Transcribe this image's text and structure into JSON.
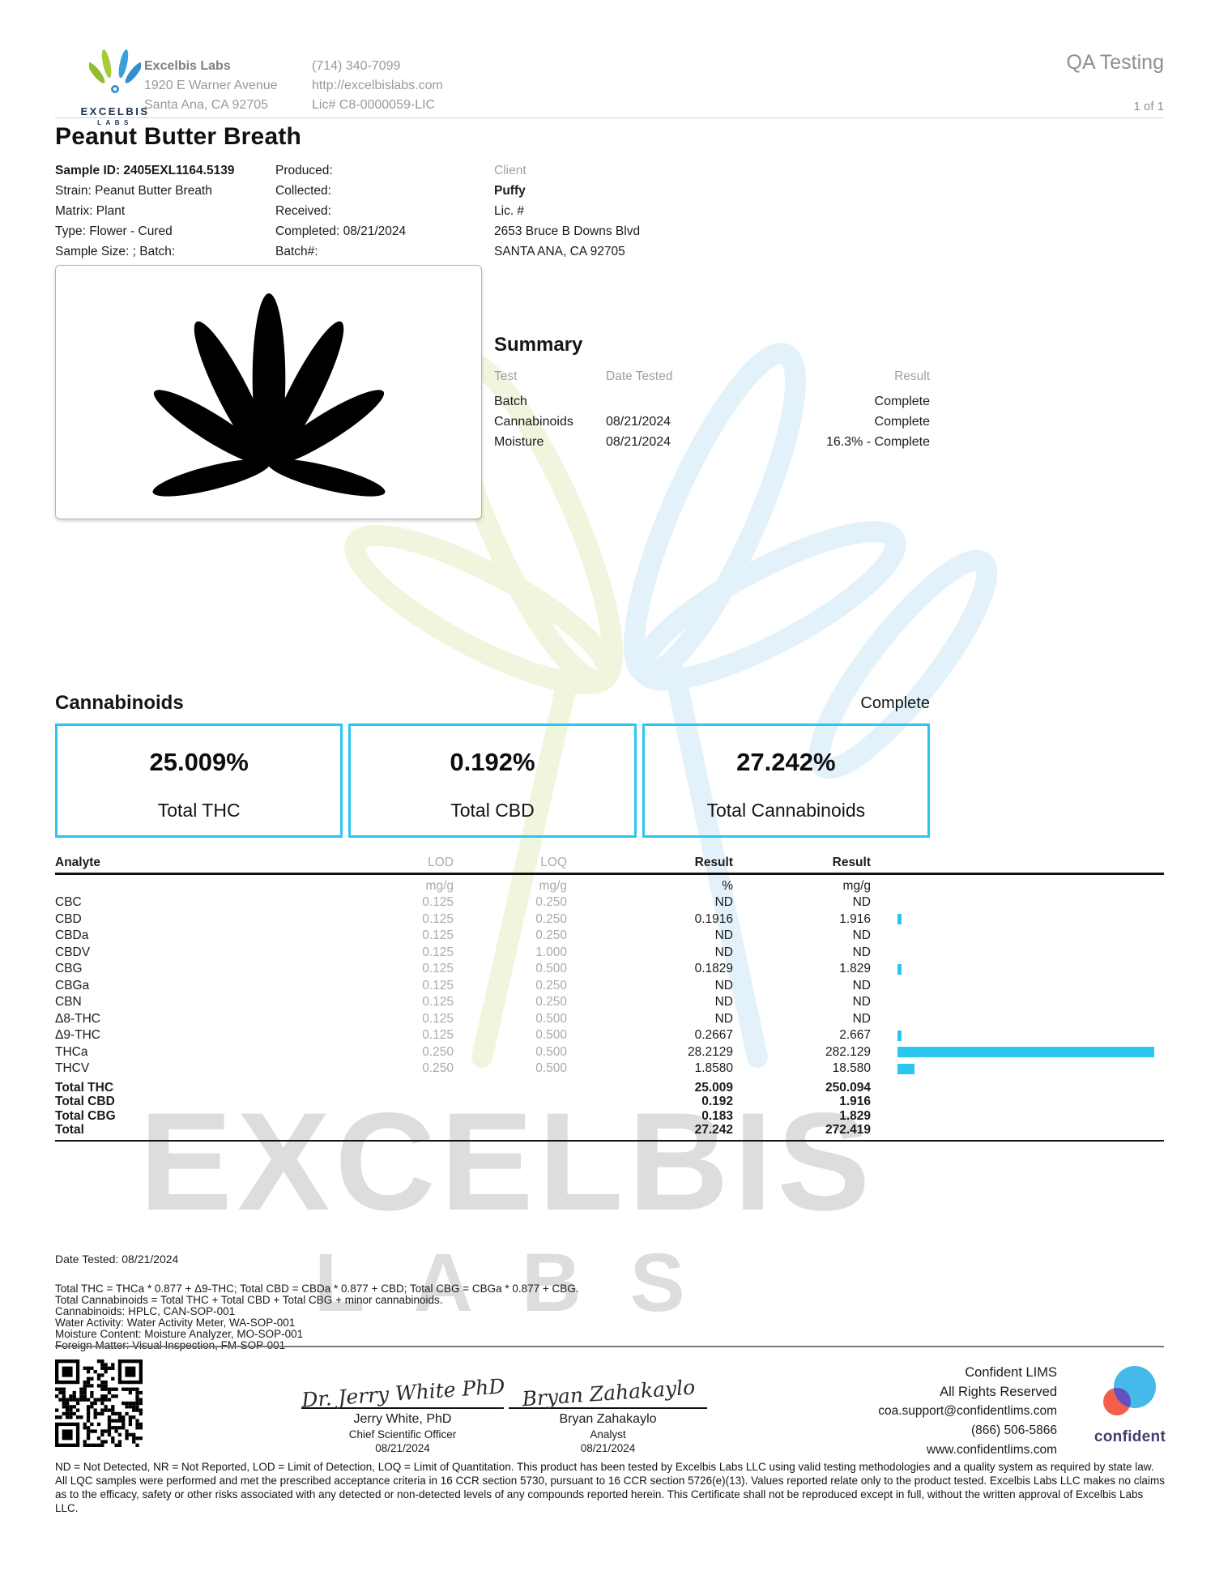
{
  "colors": {
    "accent_cyan": "#2BC6F0",
    "label_gray": "#9a9a9a",
    "logo_navy": "#1d3050",
    "confident_blue": "#45b9ea",
    "confident_orange": "#f2604a",
    "confident_purple": "#6450c0",
    "confident_navy": "#3f3d6e"
  },
  "header": {
    "qa_testing": "QA Testing",
    "page_number": "1 of 1",
    "logo_text": "EXCELBIS",
    "logo_subtext": "LABS",
    "lab_name": "Excelbis Labs",
    "address1": "1920 E Warner Avenue",
    "address2": "Santa Ana, CA 92705",
    "phone": "(714) 340-7099",
    "website": "http://excelbislabs.com",
    "license": "Lic# C8-0000059-LIC"
  },
  "sample": {
    "title": "Peanut Butter Breath",
    "col1": [
      "Sample ID: 2405EXL1164.5139",
      "Strain: Peanut Butter Breath",
      "Matrix: Plant",
      "Type: Flower - Cured",
      "Sample Size: ; Batch:"
    ],
    "col2": [
      "Produced:",
      "Collected:",
      "Received:",
      "Completed: 08/21/2024",
      "Batch#:"
    ],
    "col3": [
      "Client",
      "Puffy",
      "Lic. #",
      "2653 Bruce B Downs Blvd",
      "SANTA ANA, CA 92705"
    ]
  },
  "summary": {
    "title": "Summary",
    "headers": [
      "Test",
      "Date Tested",
      "Result"
    ],
    "rows": [
      {
        "test": "Batch",
        "date": "",
        "result": "Complete"
      },
      {
        "test": "Cannabinoids",
        "date": "08/21/2024",
        "result": "Complete"
      },
      {
        "test": "Moisture",
        "date": "08/21/2024",
        "result": "16.3% - Complete"
      }
    ]
  },
  "cannabinoids": {
    "title": "Cannabinoids",
    "status": "Complete",
    "stats": [
      {
        "value": "25.009%",
        "label": "Total THC"
      },
      {
        "value": "0.192%",
        "label": "Total CBD"
      },
      {
        "value": "27.242%",
        "label": "Total Cannabinoids"
      }
    ],
    "table": {
      "headers": {
        "analyte": "Analyte",
        "lod": "LOD",
        "loq": "LOQ",
        "result_pct": "Result",
        "result_mgg": "Result"
      },
      "units": {
        "lod": "mg/g",
        "loq": "mg/g",
        "result_pct": "%",
        "result_mgg": "mg/g"
      },
      "bar_max": 282.129,
      "rows": [
        {
          "name": "CBC",
          "lod": "0.125",
          "loq": "0.250",
          "pct": "ND",
          "mgg": "ND",
          "bar": 0
        },
        {
          "name": "CBD",
          "lod": "0.125",
          "loq": "0.250",
          "pct": "0.1916",
          "mgg": "1.916",
          "bar": 1.916
        },
        {
          "name": "CBDa",
          "lod": "0.125",
          "loq": "0.250",
          "pct": "ND",
          "mgg": "ND",
          "bar": 0
        },
        {
          "name": "CBDV",
          "lod": "0.125",
          "loq": "1.000",
          "pct": "ND",
          "mgg": "ND",
          "bar": 0
        },
        {
          "name": "CBG",
          "lod": "0.125",
          "loq": "0.500",
          "pct": "0.1829",
          "mgg": "1.829",
          "bar": 1.829
        },
        {
          "name": "CBGa",
          "lod": "0.125",
          "loq": "0.250",
          "pct": "ND",
          "mgg": "ND",
          "bar": 0
        },
        {
          "name": "CBN",
          "lod": "0.125",
          "loq": "0.250",
          "pct": "ND",
          "mgg": "ND",
          "bar": 0
        },
        {
          "name": "Δ8-THC",
          "lod": "0.125",
          "loq": "0.500",
          "pct": "ND",
          "mgg": "ND",
          "bar": 0
        },
        {
          "name": "Δ9-THC",
          "lod": "0.125",
          "loq": "0.500",
          "pct": "0.2667",
          "mgg": "2.667",
          "bar": 2.667
        },
        {
          "name": "THCa",
          "lod": "0.250",
          "loq": "0.500",
          "pct": "28.2129",
          "mgg": "282.129",
          "bar": 282.129
        },
        {
          "name": "THCV",
          "lod": "0.250",
          "loq": "0.500",
          "pct": "1.8580",
          "mgg": "18.580",
          "bar": 18.58
        }
      ],
      "totals": [
        {
          "name": "Total THC",
          "pct": "25.009",
          "mgg": "250.094"
        },
        {
          "name": "Total CBD",
          "pct": "0.192",
          "mgg": "1.916"
        },
        {
          "name": "Total CBG",
          "pct": "0.183",
          "mgg": "1.829"
        },
        {
          "name": "Total",
          "pct": "27.242",
          "mgg": "272.419"
        }
      ]
    }
  },
  "methods": {
    "date_tested": "Date Tested: 08/21/2024",
    "lines": [
      "Total THC = THCa * 0.877 + Δ9-THC; Total CBD = CBDa * 0.877 + CBD; Total CBG = CBGa * 0.877 + CBG.",
      "Total Cannabinoids = Total THC + Total CBD + Total CBG + minor cannabinoids.",
      "Cannabinoids: HPLC, CAN-SOP-001",
      "Water Activity: Water Activity Meter, WA-SOP-001",
      "Moisture Content: Moisture Analyzer, MO-SOP-001",
      "Foreign Matter: Visual Inspection, FM-SOP-001"
    ]
  },
  "signatures": [
    {
      "script": "Dr. Jerry White PhD",
      "name": "Jerry White, PhD",
      "role": "Chief Scientific Officer",
      "date": "08/21/2024"
    },
    {
      "script": "Bryan Zahakaylo",
      "name": "Bryan Zahakaylo",
      "role": "Analyst",
      "date": "08/21/2024"
    }
  ],
  "lims": {
    "name": "Confident LIMS",
    "rights": "All Rights Reserved",
    "email": "coa.support@confidentlims.com",
    "phone": "(866) 506-5866",
    "website": "www.confidentlims.com",
    "logo_label": "confident"
  },
  "watermark": {
    "word": "EXCELBIS",
    "subword": "LABS"
  },
  "disclaimer": "ND = Not Detected, NR = Not Reported, LOD = Limit of Detection, LOQ = Limit of Quantitation. This product has been tested by Excelbis Labs LLC using valid testing methodologies and a quality system as required by state law. All LQC samples were performed and met the prescribed acceptance criteria in 16 CCR section 5730, pursuant to 16 CCR section 5726(e)(13). Values reported relate only to the product tested. Excelbis Labs LLC makes no claims as to the efficacy, safety or other risks associated with any detected or non-detected levels of any compounds reported herein. This Certificate shall not be reproduced except in full, without the written approval of Excelbis Labs LLC."
}
